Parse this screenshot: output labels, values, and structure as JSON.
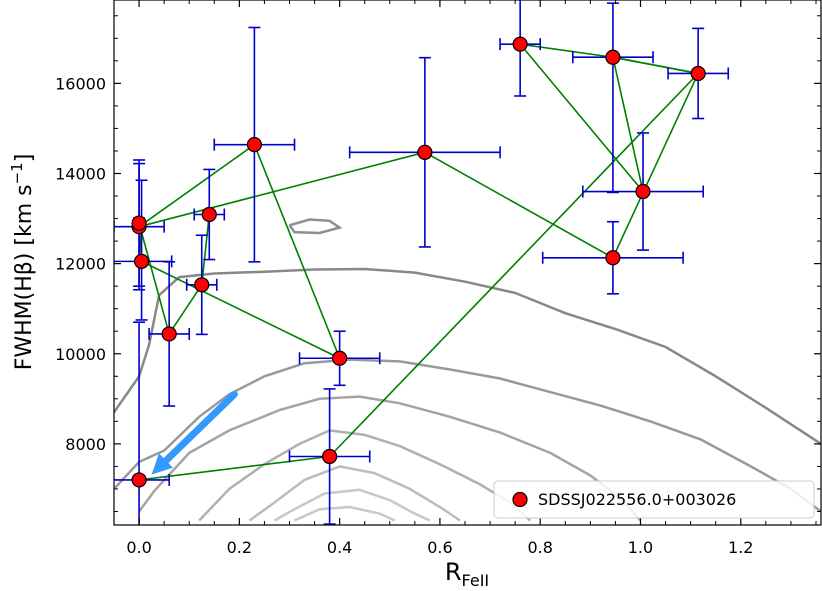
{
  "chart_data": {
    "type": "scatter",
    "title": "",
    "xlabel_main": "R",
    "xlabel_sub": "FeII",
    "ylabel_main": "FWHM(Hβ) [km s",
    "ylabel_sup": "−1",
    "ylabel_close": "]",
    "xlim": [
      -0.05,
      1.36
    ],
    "ylim": [
      6200,
      17850
    ],
    "x_ticks": [
      0.0,
      0.2,
      0.4,
      0.6,
      0.8,
      1.0,
      1.2
    ],
    "x_tick_labels": [
      "0.0",
      "0.2",
      "0.4",
      "0.6",
      "0.8",
      "1.0",
      "1.2"
    ],
    "y_ticks": [
      8000,
      10000,
      12000,
      14000,
      16000
    ],
    "y_tick_labels": [
      "8000",
      "10000",
      "12000",
      "14000",
      "16000"
    ],
    "legend": {
      "label": "SDSSJ022556.0+003026",
      "position": "lower-right"
    },
    "colors": {
      "marker_fill": "#ff0000",
      "marker_edge": "#000000",
      "errorbar": "#0000cc",
      "path": "#008000",
      "arrow": "#3399ff",
      "contour_levels": [
        "#888888",
        "#8e8e8e",
        "#999999",
        "#a4a4a4",
        "#b0b0b0",
        "#bcbcbc",
        "#c8c8c8"
      ]
    },
    "series": [
      {
        "name": "SDSSJ022556.0+003026",
        "points": [
          {
            "x": 0.0,
            "y": 7200,
            "xerr": 0.06,
            "yerr_lo": 1200,
            "yerr_hi": 3500
          },
          {
            "x": 0.38,
            "y": 7720,
            "xerr": 0.08,
            "yerr_lo": 1500,
            "yerr_hi": 1500
          },
          {
            "x": 1.115,
            "y": 16220,
            "xerr": 0.06,
            "yerr_lo": 1000,
            "yerr_hi": 1000
          },
          {
            "x": 0.945,
            "y": 16580,
            "xerr": 0.08,
            "yerr_lo": 3000,
            "yerr_hi": 1200
          },
          {
            "x": 0.76,
            "y": 16870,
            "xerr": 0.04,
            "yerr_lo": 1150,
            "yerr_hi": 1150
          },
          {
            "x": 1.005,
            "y": 13600,
            "xerr": 0.12,
            "yerr_lo": 1300,
            "yerr_hi": 1300
          },
          {
            "x": 0.945,
            "y": 12130,
            "xerr": 0.14,
            "yerr_lo": 800,
            "yerr_hi": 800
          },
          {
            "x": 0.57,
            "y": 14470,
            "xerr": 0.15,
            "yerr_lo": 2100,
            "yerr_hi": 2100
          },
          {
            "x": 0.0,
            "y": 12820,
            "xerr": 0.05,
            "yerr_lo": 1400,
            "yerr_hi": 1400
          },
          {
            "x": 0.23,
            "y": 14640,
            "xerr": 0.08,
            "yerr_lo": 2600,
            "yerr_hi": 2600
          },
          {
            "x": 0.4,
            "y": 9900,
            "xerr": 0.08,
            "yerr_lo": 600,
            "yerr_hi": 600
          },
          {
            "x": 0.0,
            "y": 12900,
            "xerr": 0.01,
            "yerr_lo": 1400,
            "yerr_hi": 1400
          },
          {
            "x": 0.005,
            "y": 12050,
            "xerr": 0.06,
            "yerr_lo": 1300,
            "yerr_hi": 1800
          },
          {
            "x": 0.06,
            "y": 10440,
            "xerr": 0.04,
            "yerr_lo": 1600,
            "yerr_hi": 1600
          },
          {
            "x": 0.125,
            "y": 11530,
            "xerr": 0.03,
            "yerr_lo": 1100,
            "yerr_hi": 1100
          },
          {
            "x": 0.14,
            "y": 13090,
            "xerr": 0.03,
            "yerr_lo": 1000,
            "yerr_hi": 1000
          }
        ]
      }
    ],
    "path_order": [
      0,
      1,
      2,
      3,
      4,
      5,
      3,
      2,
      6,
      7,
      8,
      9,
      10,
      12,
      11,
      13,
      14,
      15
    ],
    "contours": [
      [
        [
          -0.05,
          8700
        ],
        [
          0.0,
          9500
        ],
        [
          0.02,
          10200
        ],
        [
          0.04,
          11300
        ],
        [
          0.08,
          11700
        ],
        [
          0.15,
          11780
        ],
        [
          0.25,
          11820
        ],
        [
          0.35,
          11870
        ],
        [
          0.45,
          11880
        ],
        [
          0.55,
          11800
        ],
        [
          0.65,
          11600
        ],
        [
          0.75,
          11350
        ],
        [
          0.85,
          10900
        ],
        [
          0.95,
          10550
        ],
        [
          1.05,
          10150
        ],
        [
          1.15,
          9500
        ],
        [
          1.25,
          8800
        ],
        [
          1.36,
          8000
        ]
      ],
      [
        [
          0.3,
          12850
        ],
        [
          0.34,
          12980
        ],
        [
          0.38,
          12950
        ],
        [
          0.4,
          12800
        ],
        [
          0.36,
          12680
        ],
        [
          0.31,
          12700
        ],
        [
          0.3,
          12850
        ]
      ],
      [
        [
          -0.05,
          7000
        ],
        [
          0.0,
          7600
        ],
        [
          0.05,
          7850
        ],
        [
          0.12,
          8600
        ],
        [
          0.18,
          9100
        ],
        [
          0.25,
          9500
        ],
        [
          0.33,
          9790
        ],
        [
          0.42,
          9870
        ],
        [
          0.52,
          9830
        ],
        [
          0.62,
          9650
        ],
        [
          0.72,
          9450
        ],
        [
          0.82,
          9150
        ],
        [
          0.92,
          8850
        ],
        [
          1.02,
          8500
        ],
        [
          1.12,
          8100
        ],
        [
          1.22,
          7500
        ],
        [
          1.3,
          7000
        ],
        [
          1.36,
          6500
        ]
      ],
      [
        [
          0.0,
          6500
        ],
        [
          0.03,
          6950
        ],
        [
          0.1,
          7800
        ],
        [
          0.18,
          8300
        ],
        [
          0.28,
          8750
        ],
        [
          0.36,
          9000
        ],
        [
          0.44,
          9050
        ],
        [
          0.52,
          8900
        ],
        [
          0.62,
          8600
        ],
        [
          0.72,
          8250
        ],
        [
          0.82,
          7800
        ],
        [
          0.9,
          7300
        ],
        [
          0.96,
          6800
        ],
        [
          1.0,
          6300
        ]
      ],
      [
        [
          0.12,
          6300
        ],
        [
          0.18,
          7000
        ],
        [
          0.25,
          7550
        ],
        [
          0.32,
          8000
        ],
        [
          0.38,
          8300
        ],
        [
          0.45,
          8200
        ],
        [
          0.52,
          7950
        ],
        [
          0.6,
          7550
        ],
        [
          0.68,
          7100
        ],
        [
          0.74,
          6700
        ],
        [
          0.78,
          6300
        ]
      ],
      [
        [
          0.22,
          6300
        ],
        [
          0.27,
          6700
        ],
        [
          0.33,
          7200
        ],
        [
          0.4,
          7500
        ],
        [
          0.47,
          7350
        ],
        [
          0.54,
          7000
        ],
        [
          0.6,
          6600
        ],
        [
          0.64,
          6300
        ]
      ],
      [
        [
          0.27,
          6300
        ],
        [
          0.31,
          6550
        ],
        [
          0.37,
          6900
        ],
        [
          0.44,
          6980
        ],
        [
          0.5,
          6750
        ],
        [
          0.55,
          6450
        ],
        [
          0.58,
          6300
        ]
      ],
      [
        [
          0.31,
          6300
        ],
        [
          0.36,
          6550
        ],
        [
          0.42,
          6600
        ],
        [
          0.48,
          6450
        ],
        [
          0.51,
          6300
        ]
      ]
    ],
    "arrow": {
      "from": [
        0.19,
        9100
      ],
      "to": [
        0.025,
        7320
      ]
    }
  }
}
